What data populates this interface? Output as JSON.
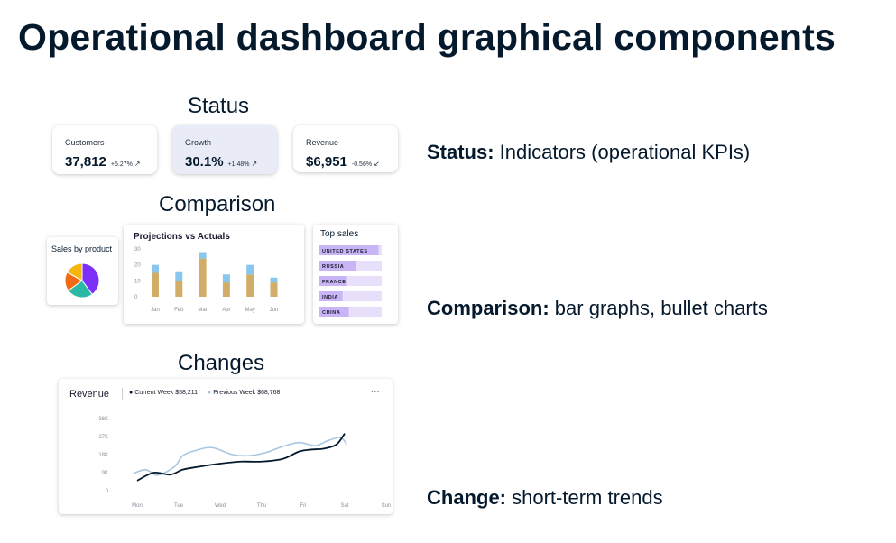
{
  "title": "Operational dashboard graphical components",
  "sections": {
    "status": "Status",
    "comparison": "Comparison",
    "changes": "Changes"
  },
  "kpis": [
    {
      "label": "Customers",
      "value": "37,812",
      "delta": "+5.27%",
      "trend": "up"
    },
    {
      "label": "Growth",
      "value": "30.1%",
      "delta": "+1.48%",
      "trend": "up"
    },
    {
      "label": "Revenue",
      "value": "$6,951",
      "delta": "-0.56%",
      "trend": "down"
    }
  ],
  "pie": {
    "title": "Sales by product",
    "slices": [
      {
        "value": 40,
        "color": "#7b2ff7"
      },
      {
        "value": 25,
        "color": "#2bb8a5"
      },
      {
        "value": 18,
        "color": "#f06a13"
      },
      {
        "value": 17,
        "color": "#f5b60c"
      }
    ]
  },
  "projections": {
    "title": "Projections vs Actuals",
    "chart_data": {
      "type": "bar",
      "categories": [
        "Jan",
        "Feb",
        "Mar",
        "Apr",
        "May",
        "Jun"
      ],
      "series": [
        {
          "values": [
            15,
            10,
            24,
            9,
            14,
            9
          ]
        },
        {
          "values": [
            5,
            6,
            4,
            5,
            6,
            3
          ]
        }
      ],
      "ylim": [
        0,
        30
      ],
      "yticks": [
        "0",
        "10",
        "20",
        "30"
      ],
      "colors": [
        "#d1ad67",
        "#88c6ee"
      ]
    }
  },
  "top_sales": {
    "title": "Top sales",
    "items": [
      {
        "label": "UNITED STATES",
        "value": 0.95
      },
      {
        "label": "RUSSIA",
        "value": 0.6
      },
      {
        "label": "FRANCE",
        "value": 0.45
      },
      {
        "label": "INDIA",
        "value": 0.38
      },
      {
        "label": "CHINA",
        "value": 0.48
      }
    ],
    "bar_color": "#c9b4f5",
    "track_color": "#e8e0fb"
  },
  "revenue_chart": {
    "title": "Revenue",
    "current_legend": "Current Week $58,211",
    "previous_legend": "Previous Week $68,768",
    "menu": "···",
    "chart_data": {
      "type": "line",
      "x": [
        "Mon",
        "Tue",
        "Wed",
        "Thu",
        "Fri",
        "Sat",
        "Sun"
      ],
      "yticks": [
        "0",
        "9K",
        "18K",
        "27K",
        "36K"
      ],
      "ylim": [
        0,
        36000
      ],
      "series": [
        {
          "name": "Current Week",
          "color": "#05192d",
          "points": [
            [
              0,
              5000
            ],
            [
              0.4,
              9000
            ],
            [
              0.8,
              8000
            ],
            [
              1.1,
              10500
            ],
            [
              1.5,
              12000
            ],
            [
              2,
              13500
            ],
            [
              2.5,
              14500
            ],
            [
              3,
              14500
            ],
            [
              3.5,
              15800
            ],
            [
              3.9,
              19500
            ],
            [
              4.2,
              20500
            ],
            [
              4.5,
              21000
            ],
            [
              4.8,
              23000
            ],
            [
              5,
              28500
            ]
          ]
        },
        {
          "name": "Previous Week",
          "color": "#a8c8e2",
          "points": [
            [
              -0.1,
              8500
            ],
            [
              0.2,
              10500
            ],
            [
              0.5,
              7800
            ],
            [
              0.9,
              12000
            ],
            [
              1.1,
              17500
            ],
            [
              1.4,
              20000
            ],
            [
              1.8,
              21500
            ],
            [
              2.3,
              18000
            ],
            [
              2.7,
              17500
            ],
            [
              3.1,
              19000
            ],
            [
              3.5,
              22000
            ],
            [
              3.9,
              24000
            ],
            [
              4.3,
              22500
            ],
            [
              4.6,
              25000
            ],
            [
              4.9,
              26500
            ],
            [
              5.05,
              23000
            ]
          ]
        }
      ]
    }
  },
  "descriptions": {
    "status": {
      "bold": "Status:",
      "text": " Indicators (operational KPIs)"
    },
    "comparison": {
      "bold": "Comparison:",
      "text": " bar graphs, bullet charts"
    },
    "change": {
      "bold": "Change:",
      "text": " short-term trends"
    }
  }
}
